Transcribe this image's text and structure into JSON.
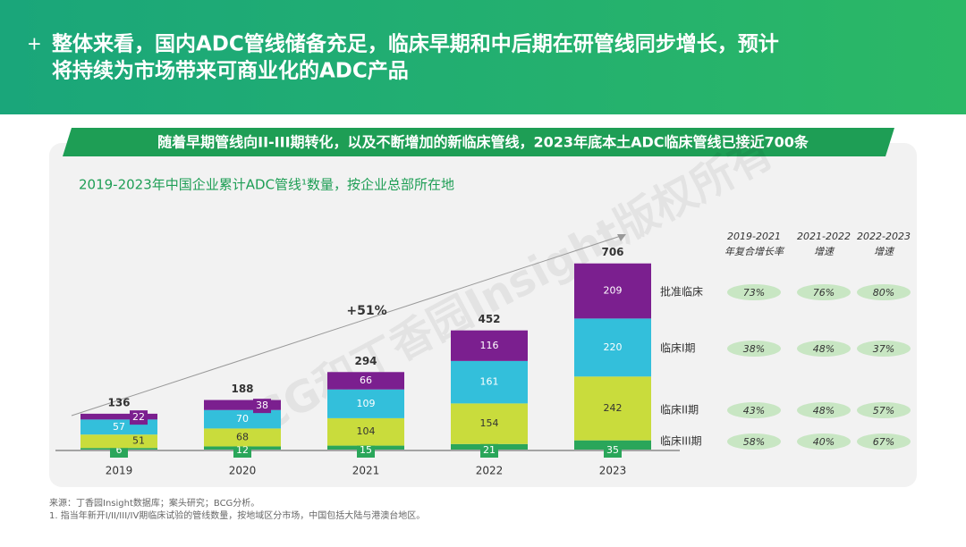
{
  "header": {
    "title_lines": [
      "整体来看，国内ADC管线储备充足，临床早期和中后期在研管线同步增长，预计",
      "将持续为市场带来可商业化的ADC产品"
    ]
  },
  "banner": "随着早期管线向II-III期转化，以及不断增加的新临床管线，2023年底本土ADC临床管线已接近700条",
  "watermark": "BCG和丁香园Insight版权所有",
  "chart_data": {
    "type": "stacked_bar",
    "title": "2019-2023年中国企业累计ADC管线¹数量，按企业总部所在地",
    "categories": [
      "2019",
      "2020",
      "2021",
      "2022",
      "2023"
    ],
    "totals": [
      136,
      188,
      294,
      452,
      706
    ],
    "annotation": "+51%",
    "series": [
      {
        "name": "临床III期",
        "color": "#2aa65a",
        "values": [
          6,
          12,
          15,
          21,
          35
        ]
      },
      {
        "name": "临床II期",
        "color": "#c9dc3c",
        "values": [
          51,
          68,
          104,
          154,
          242
        ]
      },
      {
        "name": "临床I期",
        "color": "#33bfdb",
        "values": [
          57,
          70,
          109,
          161,
          220
        ]
      },
      {
        "name": "批准临床",
        "color": "#7b1f8f",
        "values": [
          22,
          38,
          66,
          116,
          209
        ]
      }
    ]
  },
  "growth_table": {
    "headers": [
      [
        "2019-2021",
        "年复合增长率"
      ],
      [
        "2021-2022",
        "增速"
      ],
      [
        "2022-2023",
        "增速"
      ]
    ],
    "rows": [
      [
        "58%",
        "40%",
        "67%"
      ],
      [
        "43%",
        "48%",
        "57%"
      ],
      [
        "38%",
        "48%",
        "37%"
      ],
      [
        "73%",
        "76%",
        "80%"
      ]
    ]
  },
  "footnotes": [
    "来源：丁香园Insight数据库；案头研究；BCG分析。",
    "1. 指当年新开I/II/III/IV期临床试验的管线数量，按地域区分市场，中国包括大陆与港澳台地区。"
  ]
}
